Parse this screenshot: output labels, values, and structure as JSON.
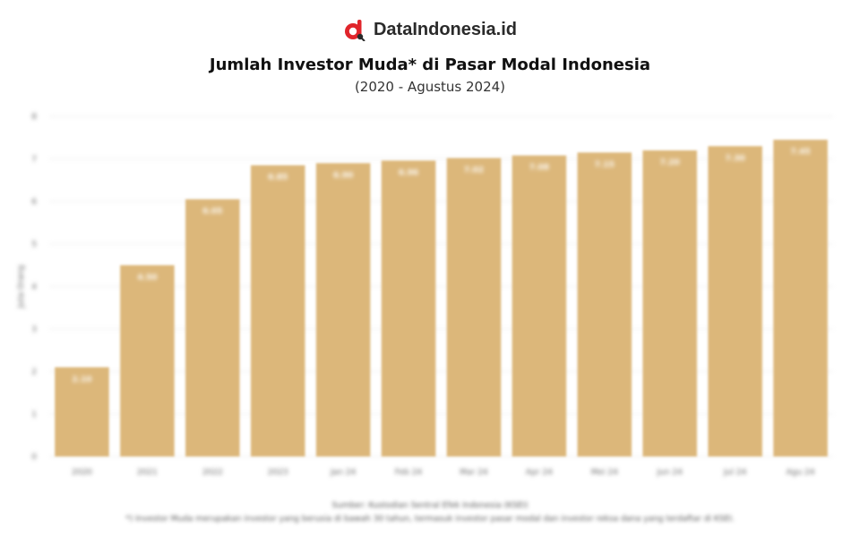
{
  "brand": {
    "name": "DataIndonesia.id",
    "logo_icon": "data-indonesia-logo-icon",
    "accent": "#e0252b"
  },
  "chart_data": {
    "type": "bar",
    "title": "Jumlah Investor Muda* di Pasar Modal Indonesia",
    "subtitle": "(2020 - Agustus 2024)",
    "ylabel": "Juta Orang",
    "ylim": [
      0,
      8
    ],
    "yticks": [
      0,
      1,
      2,
      3,
      4,
      5,
      6,
      7,
      8
    ],
    "grid": true,
    "bar_color": "#dcb77a",
    "categories": [
      "2020",
      "2021",
      "2022",
      "2023",
      "Jan 24",
      "Feb 24",
      "Mar 24",
      "Apr 24",
      "Mei 24",
      "Jun 24",
      "Jul 24",
      "Agu 24"
    ],
    "values": [
      2.1,
      4.5,
      6.05,
      6.85,
      6.9,
      6.96,
      7.02,
      7.08,
      7.15,
      7.2,
      7.3,
      7.45
    ]
  },
  "footer": {
    "source": "Sumber: Kustodian Sentral Efek Indonesia (KSEI)",
    "note": "*) Investor Muda merupakan investor yang berusia di bawah 30 tahun, termasuk investor pasar modal dan investor reksa dana yang terdaftar di KSEI."
  }
}
